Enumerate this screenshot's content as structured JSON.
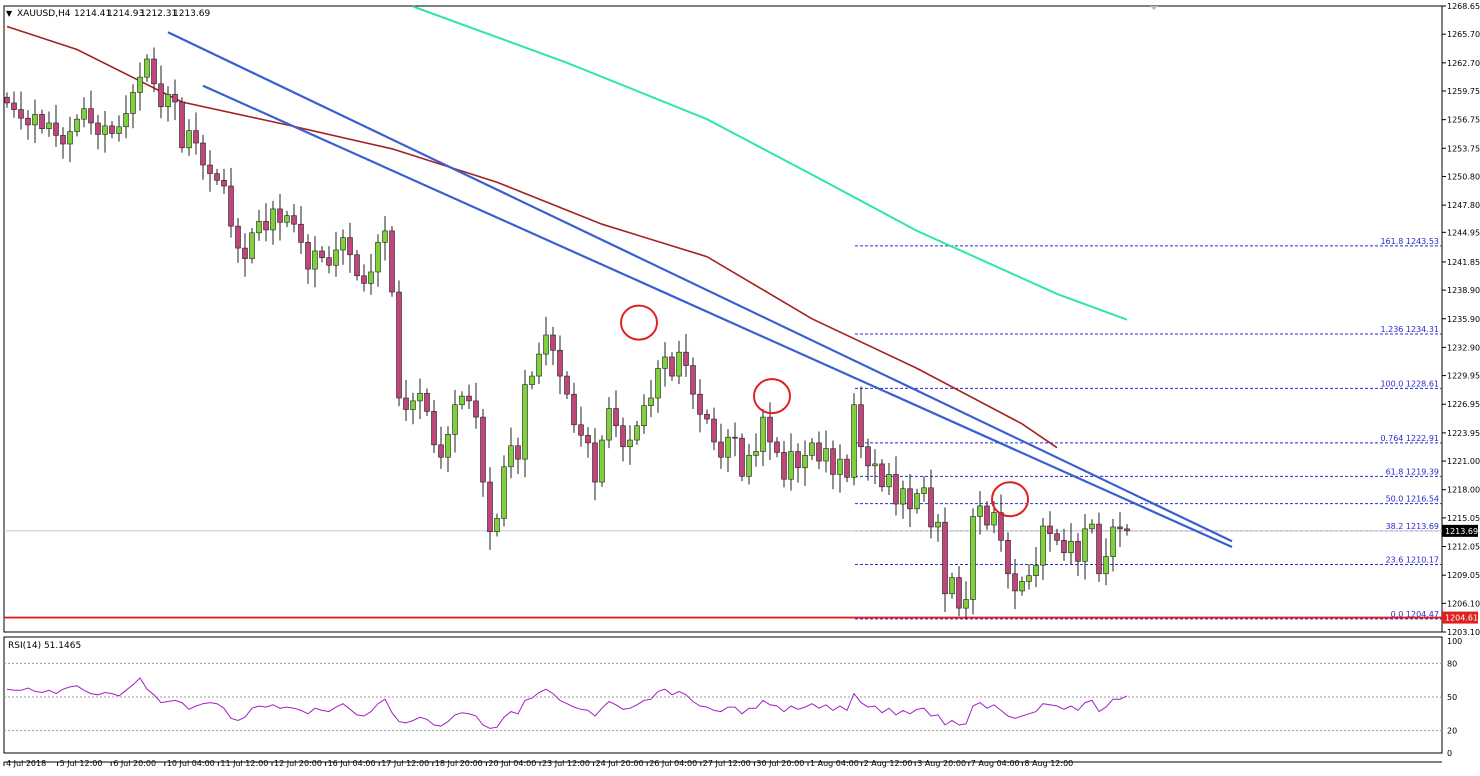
{
  "symbol_header": {
    "symbol": "XAUUSD,H4",
    "open": "1214.41",
    "high": "1214.93",
    "low": "1212.31",
    "close": "1213.69"
  },
  "colors": {
    "background": "#ffffff",
    "bull_candle": "#7fd13b",
    "bear_candle": "#c0457a",
    "wick": "#222222",
    "trendline": "#3a5fd0",
    "ma_slow": "#2ee8a0",
    "ma_fast": "#a52020",
    "fib_line": "#2a2ad0",
    "support_line": "#e02020",
    "rsi_line": "#a020c8",
    "highlight_circle": "#e02020",
    "price_tag": "#000000"
  },
  "chart_data": [
    {
      "type": "candlestick",
      "title": "XAUUSD,H4",
      "ylim": [
        1203.1,
        1268.65
      ],
      "y_ticks": [
        "1268.65",
        "1265.70",
        "1262.70",
        "1259.75",
        "1256.75",
        "1253.75",
        "1250.80",
        "1247.80",
        "1244.95",
        "1241.85",
        "1238.90",
        "1235.90",
        "1232.90",
        "1229.95",
        "1226.95",
        "1223.95",
        "1221.00",
        "1218.00",
        "1215.05",
        "1212.05",
        "1209.05",
        "1206.10",
        "1203.10"
      ],
      "x_ticks": [
        "4 Jul 2018",
        "5 Jul 12:00",
        "6 Jul 20:00",
        "10 Jul 04:00",
        "11 Jul 12:00",
        "12 Jul 20:00",
        "16 Jul 04:00",
        "17 Jul 12:00",
        "18 Jul 20:00",
        "20 Jul 04:00",
        "23 Jul 12:00",
        "24 Jul 20:00",
        "26 Jul 04:00",
        "27 Jul 12:00",
        "30 Jul 20:00",
        "1 Aug 04:00",
        "2 Aug 12:00",
        "3 Aug 20:00",
        "7 Aug 04:00",
        "8 Aug 12:00"
      ],
      "closes": [
        1258.5,
        1257.8,
        1256.9,
        1256.2,
        1257.3,
        1255.8,
        1256.4,
        1255.1,
        1254.2,
        1255.5,
        1256.8,
        1257.9,
        1256.4,
        1255.2,
        1256.1,
        1255.3,
        1256.0,
        1257.4,
        1259.6,
        1261.2,
        1263.1,
        1260.5,
        1258.1,
        1259.4,
        1258.6,
        1253.8,
        1255.6,
        1254.3,
        1252.0,
        1251.1,
        1250.4,
        1249.8,
        1245.6,
        1243.3,
        1242.2,
        1244.9,
        1246.1,
        1245.2,
        1247.4,
        1246.0,
        1246.7,
        1245.8,
        1243.9,
        1241.1,
        1243.0,
        1242.3,
        1241.5,
        1243.1,
        1244.4,
        1242.6,
        1240.4,
        1239.6,
        1240.8,
        1243.9,
        1245.1,
        1238.7,
        1227.6,
        1226.4,
        1227.3,
        1228.1,
        1226.2,
        1222.7,
        1221.4,
        1223.8,
        1226.9,
        1227.8,
        1227.3,
        1225.6,
        1218.8,
        1213.6,
        1215.0,
        1220.4,
        1222.6,
        1221.2,
        1229.0,
        1229.9,
        1232.2,
        1234.2,
        1232.6,
        1229.9,
        1228.0,
        1224.8,
        1223.7,
        1222.9,
        1218.8,
        1223.2,
        1226.5,
        1224.7,
        1222.5,
        1223.2,
        1224.7,
        1226.8,
        1227.6,
        1230.7,
        1231.9,
        1229.9,
        1232.4,
        1231.0,
        1228.0,
        1225.9,
        1225.4,
        1223.0,
        1221.4,
        1223.5,
        1223.4,
        1219.4,
        1221.6,
        1222.0,
        1225.6,
        1223.0,
        1221.9,
        1219.1,
        1222.0,
        1220.3,
        1221.6,
        1222.9,
        1221.0,
        1222.3,
        1219.6,
        1221.2,
        1219.3,
        1226.9,
        1222.5,
        1220.5,
        1220.7,
        1218.3,
        1219.6,
        1216.5,
        1218.1,
        1216.0,
        1217.6,
        1218.2,
        1214.1,
        1214.6,
        1207.1,
        1208.8,
        1205.6,
        1206.5,
        1215.2,
        1216.3,
        1214.3,
        1215.6,
        1212.7,
        1209.2,
        1207.4,
        1208.4,
        1209.0,
        1210.1,
        1214.2,
        1213.4,
        1212.7,
        1211.4,
        1212.6,
        1210.5,
        1213.9,
        1214.4,
        1209.2,
        1211.0,
        1214.1,
        1213.9,
        1213.69
      ],
      "indicators": {
        "ma_fast": [
          [
            0,
            1266.5
          ],
          [
            10,
            1264.1
          ],
          [
            25,
            1258.6
          ],
          [
            40,
            1256.2
          ],
          [
            55,
            1253.7
          ],
          [
            70,
            1250.2
          ],
          [
            85,
            1245.8
          ],
          [
            100,
            1242.4
          ],
          [
            115,
            1235.9
          ],
          [
            130,
            1230.7
          ],
          [
            145,
            1224.9
          ],
          [
            150,
            1222.4
          ]
        ],
        "ma_slow": [
          [
            58,
            1268.6
          ],
          [
            80,
            1262.7
          ],
          [
            100,
            1256.8
          ],
          [
            115,
            1251.0
          ],
          [
            130,
            1245.1
          ],
          [
            150,
            1238.5
          ],
          [
            160,
            1235.8
          ]
        ],
        "trendlines": [
          {
            "from": [
              23,
              1265.9
            ],
            "to": [
              175,
              1212.6
            ]
          },
          {
            "from": [
              28,
              1260.3
            ],
            "to": [
              175,
              1212.0
            ]
          }
        ],
        "support": 1204.61
      },
      "highlights": [
        {
          "index": 90,
          "price": 1235.5
        },
        {
          "index": 109,
          "price": 1227.8
        },
        {
          "index": 143,
          "price": 1217.0
        }
      ],
      "fib_levels": [
        {
          "label": "161.8 1243.53",
          "price": 1243.53
        },
        {
          "label": "1.236 1234.31",
          "price": 1234.31
        },
        {
          "label": "100.0 1228.61",
          "price": 1228.61
        },
        {
          "label": "0.764 1222.91",
          "price": 1222.91
        },
        {
          "label": "61.8 1219.39",
          "price": 1219.39
        },
        {
          "label": "50.0 1216.54",
          "price": 1216.54
        },
        {
          "label": "38.2 1213.69",
          "price": 1213.69
        },
        {
          "label": "23.6 1210.17",
          "price": 1210.17
        },
        {
          "label": "0.0 1204.47",
          "price": 1204.47
        }
      ],
      "current_price_tag": "1213.69",
      "support_price_tag": "1204.61"
    },
    {
      "type": "line",
      "title": "RSI(14) 51.1465",
      "ylim": [
        0,
        100
      ],
      "y_ticks": [
        "100",
        "80",
        "50",
        "20",
        "0"
      ],
      "series": [
        {
          "values": [
            57,
            56,
            56,
            58,
            55,
            54,
            56,
            53,
            57,
            59,
            60,
            56,
            53,
            52,
            54,
            53,
            51,
            56,
            61,
            67,
            57,
            52,
            45,
            46,
            47,
            45,
            39,
            42,
            44,
            45,
            44,
            40,
            31,
            29,
            32,
            40,
            42,
            41,
            43,
            40,
            41,
            40,
            38,
            35,
            40,
            38,
            37,
            41,
            44,
            39,
            34,
            33,
            37,
            44,
            48,
            36,
            28,
            27,
            29,
            32,
            30,
            25,
            24,
            28,
            34,
            36,
            35,
            33,
            25,
            22,
            23,
            32,
            37,
            35,
            47,
            49,
            54,
            57,
            53,
            47,
            44,
            41,
            39,
            38,
            33,
            40,
            46,
            43,
            39,
            40,
            43,
            47,
            48,
            55,
            57,
            52,
            55,
            52,
            46,
            42,
            41,
            38,
            37,
            41,
            41,
            35,
            40,
            40,
            47,
            43,
            42,
            37,
            42,
            39,
            41,
            44,
            40,
            43,
            38,
            42,
            38,
            53,
            45,
            41,
            42,
            36,
            40,
            34,
            38,
            35,
            39,
            40,
            33,
            34,
            25,
            29,
            25,
            26,
            42,
            45,
            40,
            43,
            38,
            33,
            31,
            33,
            35,
            37,
            44,
            43,
            42,
            39,
            42,
            38,
            45,
            47,
            37,
            41,
            48,
            48,
            51
          ]
        }
      ]
    }
  ]
}
